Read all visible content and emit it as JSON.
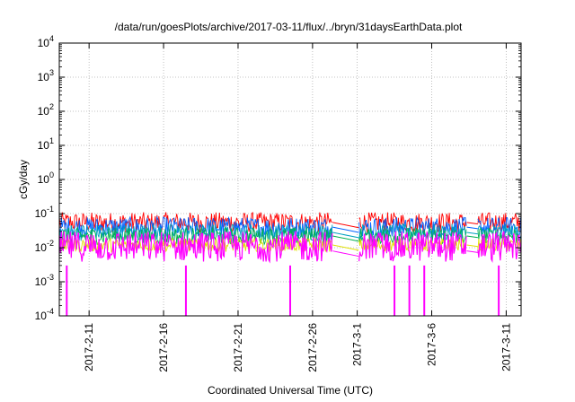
{
  "chart_data": {
    "type": "line",
    "title": "/data/run/goesPlots/archive/2017-03-11/flux/../bryn/31daysEarthData.plot",
    "xlabel": "Coordinated Universal Time (UTC)",
    "ylabel": "cGy/day",
    "yscale": "log",
    "ylim": [
      0.0001,
      10000
    ],
    "xlim": [
      "2017-02-09",
      "2017-03-12"
    ],
    "grid": true,
    "x_ticks": [
      "2017-2-11",
      "2017-2-16",
      "2017-2-21",
      "2017-2-26",
      "2017-3-1",
      "2017-3-6",
      "2017-3-11"
    ],
    "y_ticks": [
      {
        "base": "10",
        "exp": "-4"
      },
      {
        "base": "10",
        "exp": "-3"
      },
      {
        "base": "10",
        "exp": "-2"
      },
      {
        "base": "10",
        "exp": "-1"
      },
      {
        "base": "10",
        "exp": "0"
      },
      {
        "base": "10",
        "exp": "1"
      },
      {
        "base": "10",
        "exp": "2"
      },
      {
        "base": "10",
        "exp": "3"
      },
      {
        "base": "10",
        "exp": "4"
      }
    ],
    "data_gaps": [
      [
        "2017-02-27",
        "2017-03-01"
      ],
      [
        "2017-03-08",
        "2017-03-09"
      ]
    ],
    "series": [
      {
        "color": "#ff0000",
        "typical": 0.055,
        "spread": 0.3
      },
      {
        "color": "#0060ff",
        "typical": 0.04,
        "spread": 0.3
      },
      {
        "color": "#00a0c0",
        "typical": 0.028,
        "spread": 0.25
      },
      {
        "color": "#00b050",
        "typical": 0.022,
        "spread": 0.25
      },
      {
        "color": "#e0e000",
        "typical": 0.012,
        "spread": 0.2
      },
      {
        "color": "#ff00ff",
        "typical": 0.008,
        "spread": 0.6
      }
    ],
    "dropouts": [
      {
        "date": "2017-02-09",
        "value": 0.0001
      },
      {
        "date": "2017-02-17",
        "value": 0.0001
      },
      {
        "date": "2017-02-24",
        "value": 0.0001
      },
      {
        "date": "2017-03-03",
        "value": 0.0001
      },
      {
        "date": "2017-03-04",
        "value": 0.0001
      },
      {
        "date": "2017-03-05",
        "value": 0.0001
      },
      {
        "date": "2017-03-10",
        "value": 0.0001
      }
    ]
  }
}
